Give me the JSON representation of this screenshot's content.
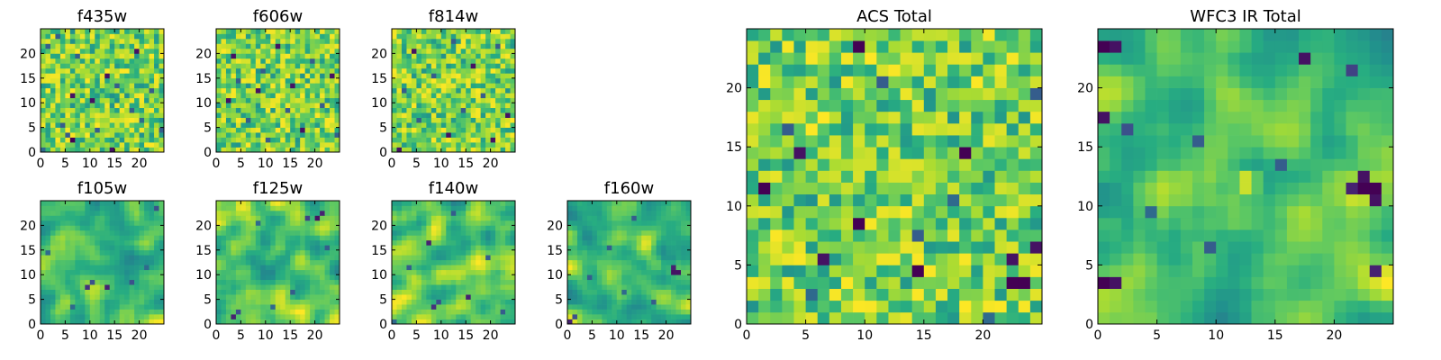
{
  "chart_data": [
    {
      "type": "heatmap",
      "title": "f435w",
      "grid_size": 25,
      "xlim": [
        0,
        25
      ],
      "ylim": [
        0,
        25
      ],
      "xticks": [
        0,
        5,
        10,
        15,
        20
      ],
      "yticks": [
        0,
        5,
        10,
        15,
        20
      ],
      "colormap": "viridis",
      "dark_cells": [
        [
          0,
          0,
          0.35
        ],
        [
          1,
          21,
          0.3
        ],
        [
          3,
          23,
          0.3
        ],
        [
          4,
          5,
          0.3
        ],
        [
          5,
          3,
          0.3
        ],
        [
          6,
          2,
          0.0
        ],
        [
          6,
          11,
          0.05
        ],
        [
          7,
          19,
          0.3
        ],
        [
          10,
          10,
          0.05
        ],
        [
          11,
          4,
          0.3
        ],
        [
          13,
          15,
          0.05
        ],
        [
          14,
          0,
          0.05
        ],
        [
          15,
          13,
          0.3
        ],
        [
          18,
          8,
          0.3
        ],
        [
          19,
          20,
          0.05
        ],
        [
          20,
          6,
          0.35
        ],
        [
          22,
          12,
          0.3
        ],
        [
          24,
          4,
          0.3
        ]
      ]
    },
    {
      "type": "heatmap",
      "title": "f606w",
      "grid_size": 25,
      "xlim": [
        0,
        25
      ],
      "ylim": [
        0,
        25
      ],
      "xticks": [
        0,
        5,
        10,
        15,
        20
      ],
      "yticks": [
        0,
        5,
        10,
        15,
        20
      ],
      "colormap": "viridis",
      "dark_cells": [
        [
          2,
          10,
          0.05
        ],
        [
          3,
          19,
          0.05
        ],
        [
          4,
          14,
          0.3
        ],
        [
          6,
          6,
          0.3
        ],
        [
          8,
          12,
          0.05
        ],
        [
          9,
          16,
          0.3
        ],
        [
          10,
          2,
          0.3
        ],
        [
          12,
          21,
          0.05
        ],
        [
          14,
          8,
          0.3
        ],
        [
          15,
          13,
          0.05
        ],
        [
          17,
          4,
          0.05
        ],
        [
          19,
          18,
          0.3
        ],
        [
          21,
          9,
          0.3
        ],
        [
          23,
          15,
          0.05
        ],
        [
          24,
          3,
          0.3
        ]
      ]
    },
    {
      "type": "heatmap",
      "title": "f814w",
      "grid_size": 25,
      "xlim": [
        0,
        25
      ],
      "ylim": [
        0,
        25
      ],
      "xticks": [
        0,
        5,
        10,
        15,
        20
      ],
      "yticks": [
        0,
        5,
        10,
        15,
        20
      ],
      "colormap": "viridis",
      "dark_cells": [
        [
          1,
          0,
          0.05
        ],
        [
          2,
          12,
          0.3
        ],
        [
          4,
          20,
          0.05
        ],
        [
          5,
          6,
          0.3
        ],
        [
          8,
          15,
          0.3
        ],
        [
          11,
          3,
          0.05
        ],
        [
          12,
          22,
          0.3
        ],
        [
          14,
          8,
          0.3
        ],
        [
          16,
          17,
          0.05
        ],
        [
          18,
          11,
          0.3
        ],
        [
          20,
          2,
          0.05
        ],
        [
          21,
          21,
          0.3
        ],
        [
          23,
          7,
          0.05
        ]
      ]
    },
    {
      "type": "heatmap",
      "title": "f105w",
      "grid_size": 25,
      "xlim": [
        0,
        25
      ],
      "ylim": [
        0,
        25
      ],
      "xticks": [
        0,
        5,
        10,
        15,
        20
      ],
      "yticks": [
        0,
        5,
        10,
        15,
        20
      ],
      "colormap": "viridis",
      "smooth": true,
      "dark_cells": [
        [
          9,
          7,
          0.15
        ],
        [
          10,
          8,
          0.25
        ],
        [
          13,
          7,
          0.1
        ],
        [
          18,
          8,
          0.25
        ],
        [
          23,
          23,
          0.25
        ],
        [
          1,
          14,
          0.35
        ],
        [
          6,
          3,
          0.35
        ],
        [
          21,
          11,
          0.35
        ]
      ]
    },
    {
      "type": "heatmap",
      "title": "f125w",
      "grid_size": 25,
      "xlim": [
        0,
        25
      ],
      "ylim": [
        0,
        25
      ],
      "xticks": [
        0,
        5,
        10,
        15,
        20
      ],
      "yticks": [
        0,
        5,
        10,
        15,
        20
      ],
      "colormap": "viridis",
      "smooth": true,
      "dark_cells": [
        [
          20,
          21,
          0.05
        ],
        [
          21,
          22,
          0.1
        ],
        [
          18,
          21,
          0.2
        ],
        [
          3,
          1,
          0.1
        ],
        [
          4,
          2,
          0.25
        ],
        [
          11,
          3,
          0.35
        ],
        [
          15,
          6,
          0.3
        ],
        [
          22,
          15,
          0.3
        ],
        [
          8,
          20,
          0.35
        ]
      ]
    },
    {
      "type": "heatmap",
      "title": "f140w",
      "grid_size": 25,
      "xlim": [
        0,
        25
      ],
      "ylim": [
        0,
        25
      ],
      "xticks": [
        0,
        5,
        10,
        15,
        20
      ],
      "yticks": [
        0,
        5,
        10,
        15,
        20
      ],
      "colormap": "viridis",
      "smooth": true,
      "dark_cells": [
        [
          7,
          16,
          0.1
        ],
        [
          8,
          3,
          0.15
        ],
        [
          9,
          4,
          0.25
        ],
        [
          15,
          5,
          0.1
        ],
        [
          12,
          22,
          0.3
        ],
        [
          3,
          11,
          0.3
        ],
        [
          19,
          13,
          0.3
        ],
        [
          22,
          2,
          0.3
        ],
        [
          0,
          0,
          0.35
        ]
      ]
    },
    {
      "type": "heatmap",
      "title": "f160w",
      "grid_size": 25,
      "xlim": [
        0,
        25
      ],
      "ylim": [
        0,
        25
      ],
      "xticks": [
        0,
        5,
        10,
        15,
        20
      ],
      "yticks": [
        0,
        5,
        10,
        15,
        20
      ],
      "colormap": "viridis",
      "smooth": true,
      "dark_cells": [
        [
          21,
          10,
          0.05
        ],
        [
          22,
          10,
          0.05
        ],
        [
          21,
          11,
          0.1
        ],
        [
          0,
          0,
          0.1
        ],
        [
          1,
          1,
          0.25
        ],
        [
          4,
          9,
          0.3
        ],
        [
          8,
          15,
          0.3
        ],
        [
          13,
          21,
          0.3
        ],
        [
          17,
          4,
          0.3
        ],
        [
          11,
          6,
          0.35
        ]
      ]
    },
    {
      "type": "heatmap",
      "title": "ACS Total",
      "grid_size": 25,
      "xlim": [
        0,
        25
      ],
      "ylim": [
        0,
        25
      ],
      "xticks": [
        0,
        5,
        10,
        15,
        20
      ],
      "yticks": [
        0,
        5,
        10,
        15,
        20
      ],
      "colormap": "viridis",
      "dark_cells": [
        [
          9,
          23,
          0.0
        ],
        [
          1,
          11,
          0.0
        ],
        [
          4,
          14,
          0.05
        ],
        [
          9,
          8,
          0.0
        ],
        [
          18,
          14,
          0.0
        ],
        [
          24,
          6,
          0.05
        ],
        [
          14,
          4,
          0.0
        ],
        [
          22,
          3,
          0.0
        ],
        [
          23,
          3,
          0.0
        ],
        [
          6,
          5,
          0.05
        ],
        [
          22,
          5,
          0.05
        ],
        [
          3,
          16,
          0.3
        ],
        [
          11,
          20,
          0.3
        ],
        [
          14,
          7,
          0.3
        ],
        [
          17,
          10,
          0.35
        ],
        [
          24,
          19,
          0.3
        ],
        [
          5,
          2,
          0.35
        ],
        [
          20,
          0,
          0.35
        ]
      ]
    },
    {
      "type": "heatmap",
      "title": "WFC3 IR Total",
      "grid_size": 25,
      "xlim": [
        0,
        25
      ],
      "ylim": [
        0,
        25
      ],
      "xticks": [
        0,
        5,
        10,
        15,
        20
      ],
      "yticks": [
        0,
        5,
        10,
        15,
        20
      ],
      "colormap": "viridis",
      "smooth": true,
      "bright_source": {
        "x": 12.5,
        "y": 12,
        "value": 0.98
      },
      "dark_cells": [
        [
          0,
          23,
          0.0
        ],
        [
          1,
          23,
          0.05
        ],
        [
          0,
          17,
          0.05
        ],
        [
          17,
          22,
          0.05
        ],
        [
          22,
          11,
          0.0
        ],
        [
          23,
          11,
          0.0
        ],
        [
          22,
          12,
          0.05
        ],
        [
          23,
          10,
          0.05
        ],
        [
          21,
          11,
          0.1
        ],
        [
          0,
          3,
          0.0
        ],
        [
          1,
          3,
          0.05
        ],
        [
          23,
          4,
          0.1
        ],
        [
          21,
          21,
          0.2
        ],
        [
          2,
          16,
          0.25
        ],
        [
          8,
          15,
          0.3
        ],
        [
          15,
          13,
          0.3
        ],
        [
          9,
          6,
          0.3
        ],
        [
          4,
          9,
          0.35
        ]
      ]
    }
  ]
}
